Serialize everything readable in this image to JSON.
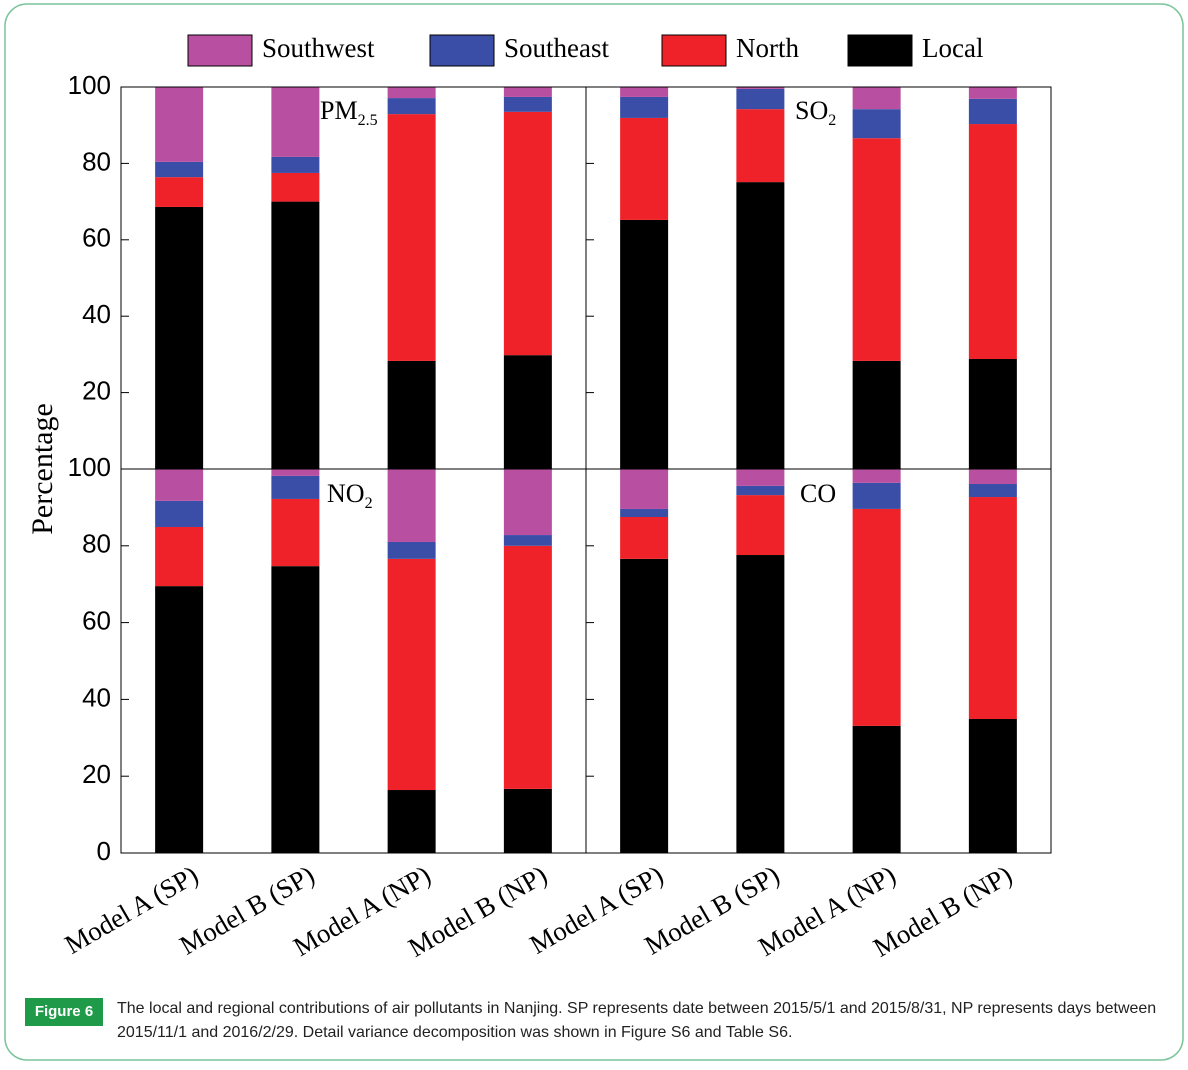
{
  "chart_data": [
    {
      "type": "bar",
      "stacked": true,
      "ylabel": "Percentage",
      "label": "PM",
      "label_sub": "2.5",
      "ylim": [
        0,
        100
      ],
      "yticks": [
        20,
        40,
        60,
        80,
        100
      ],
      "series": [
        {
          "name": "Southwest",
          "color": "#b84fa0",
          "values": [
            19.6,
            18.3,
            2.9,
            2.6
          ]
        },
        {
          "name": "Southeast",
          "color": "#3a4ea8",
          "values": [
            4,
            4.2,
            4.2,
            3.9
          ]
        },
        {
          "name": "North",
          "color": "#ee2228",
          "values": [
            7.8,
            7.5,
            64.6,
            63.7
          ]
        },
        {
          "name": "Local",
          "color": "#000000",
          "values": [
            68.6,
            70,
            28.3,
            29.8
          ]
        }
      ]
    },
    {
      "type": "bar",
      "stacked": true,
      "label": "SO",
      "label_sub": "2",
      "ylim": [
        0,
        100
      ],
      "yticks": [
        20,
        40,
        60,
        80,
        100
      ],
      "series": [
        {
          "name": "Southwest",
          "color": "#b84fa0",
          "values": [
            2.6,
            0.5,
            5.8,
            3.1
          ]
        },
        {
          "name": "Southeast",
          "color": "#3a4ea8",
          "values": [
            5.5,
            5.3,
            7.6,
            6.6
          ]
        },
        {
          "name": "North",
          "color": "#ee2228",
          "values": [
            26.7,
            19.1,
            58.3,
            61.5
          ]
        },
        {
          "name": "Local",
          "color": "#000000",
          "values": [
            65.2,
            75.1,
            28.3,
            28.8
          ]
        }
      ]
    },
    {
      "type": "bar",
      "stacked": true,
      "label": "NO",
      "label_sub": "2",
      "categories": [
        "Model A (SP)",
        "Model B (SP)",
        "Model A (NP)",
        "Model B (NP)"
      ],
      "ylim": [
        0,
        100
      ],
      "yticks": [
        0,
        20,
        40,
        60,
        80,
        100
      ],
      "series": [
        {
          "name": "Southwest",
          "color": "#b84fa0",
          "values": [
            8.3,
            1.8,
            19,
            17.2
          ]
        },
        {
          "name": "Southeast",
          "color": "#3a4ea8",
          "values": [
            6.8,
            6,
            4.4,
            2.8
          ]
        },
        {
          "name": "North",
          "color": "#ee2228",
          "values": [
            15.4,
            17.5,
            60.2,
            63.3
          ]
        },
        {
          "name": "Local",
          "color": "#000000",
          "values": [
            69.5,
            74.7,
            16.4,
            16.7
          ]
        }
      ]
    },
    {
      "type": "bar",
      "stacked": true,
      "label": "CO",
      "categories": [
        "Model A (SP)",
        "Model B (SP)",
        "Model A (NP)",
        "Model B (NP)"
      ],
      "ylim": [
        0,
        100
      ],
      "yticks": [
        0,
        20,
        40,
        60,
        80,
        100
      ],
      "series": [
        {
          "name": "Southwest",
          "color": "#b84fa0",
          "values": [
            10.4,
            4.4,
            3.6,
            3.9
          ]
        },
        {
          "name": "Southeast",
          "color": "#3a4ea8",
          "values": [
            2.1,
            2.4,
            6.8,
            3.4
          ]
        },
        {
          "name": "North",
          "color": "#ee2228",
          "values": [
            10.9,
            15.6,
            56.5,
            57.8
          ]
        },
        {
          "name": "Local",
          "color": "#000000",
          "values": [
            76.6,
            77.6,
            33.1,
            34.9
          ]
        }
      ]
    }
  ],
  "caption": {
    "label": "Figure 6",
    "text": "The local and regional contributions of air pollutants in Nanjing. SP represents date between 2015/5/1 and 2015/8/31, NP represents days between 2015/11/1 and 2016/2/29. Detail variance decomposition was shown in Figure S6 and Table S6."
  }
}
